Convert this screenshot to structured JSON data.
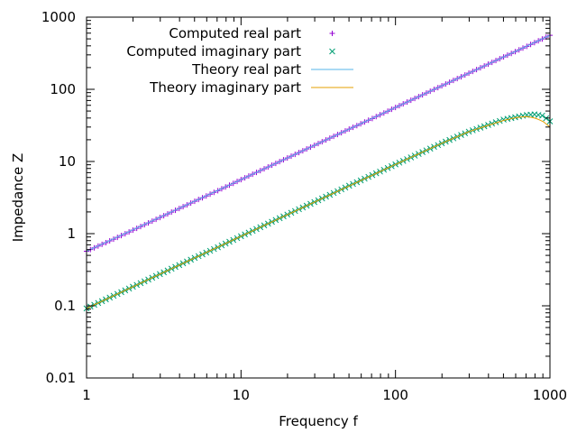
{
  "chart_data": {
    "type": "scatter",
    "title": "",
    "xlabel": "Frequency f",
    "ylabel": "Impedance Z",
    "xscale": "log",
    "yscale": "log",
    "xlim": [
      1,
      1000
    ],
    "ylim": [
      0.01,
      1000
    ],
    "xticks": [
      1,
      10,
      100,
      1000
    ],
    "xtick_labels": [
      "1",
      "10",
      "100",
      "1000"
    ],
    "yticks": [
      0.01,
      0.1,
      1,
      10,
      100,
      1000
    ],
    "ytick_labels": [
      "0.01",
      "0.1",
      "1",
      "10",
      "100",
      "1000"
    ],
    "grid": false,
    "legend_position": "top-left",
    "series": [
      {
        "name": "Computed real part",
        "marker": "plus",
        "color": "#9400d3",
        "x": [
          1,
          1.5,
          2,
          3,
          5,
          7,
          10,
          15,
          20,
          30,
          50,
          70,
          100,
          150,
          200,
          300,
          500,
          700,
          1000
        ],
        "y": [
          0.57,
          0.84,
          1.12,
          1.68,
          2.8,
          3.9,
          5.6,
          8.4,
          11.2,
          16.8,
          28,
          39,
          56,
          84,
          112,
          168,
          280,
          390,
          560
        ]
      },
      {
        "name": "Computed imaginary part",
        "marker": "cross",
        "color": "#009e73",
        "x": [
          1,
          1.5,
          2,
          3,
          5,
          7,
          10,
          15,
          20,
          30,
          50,
          70,
          100,
          150,
          200,
          300,
          500,
          700,
          800,
          900,
          1000
        ],
        "y": [
          0.092,
          0.138,
          0.184,
          0.276,
          0.46,
          0.64,
          0.92,
          1.38,
          1.84,
          2.75,
          4.6,
          6.4,
          9.1,
          13.5,
          17.9,
          26,
          38,
          44,
          45,
          43,
          36
        ]
      },
      {
        "name": "Theory real part",
        "marker": "line",
        "color": "#56b4e9",
        "x": [
          1,
          10,
          100,
          1000
        ],
        "y": [
          0.57,
          5.6,
          56,
          560
        ]
      },
      {
        "name": "Theory imaginary part",
        "marker": "line",
        "color": "#e69f00",
        "x": [
          1,
          10,
          100,
          200,
          300,
          500,
          600,
          700,
          800,
          900,
          1000
        ],
        "y": [
          0.092,
          0.92,
          9.1,
          17.9,
          26,
          37,
          40.5,
          42,
          40,
          36,
          30
        ]
      }
    ]
  }
}
